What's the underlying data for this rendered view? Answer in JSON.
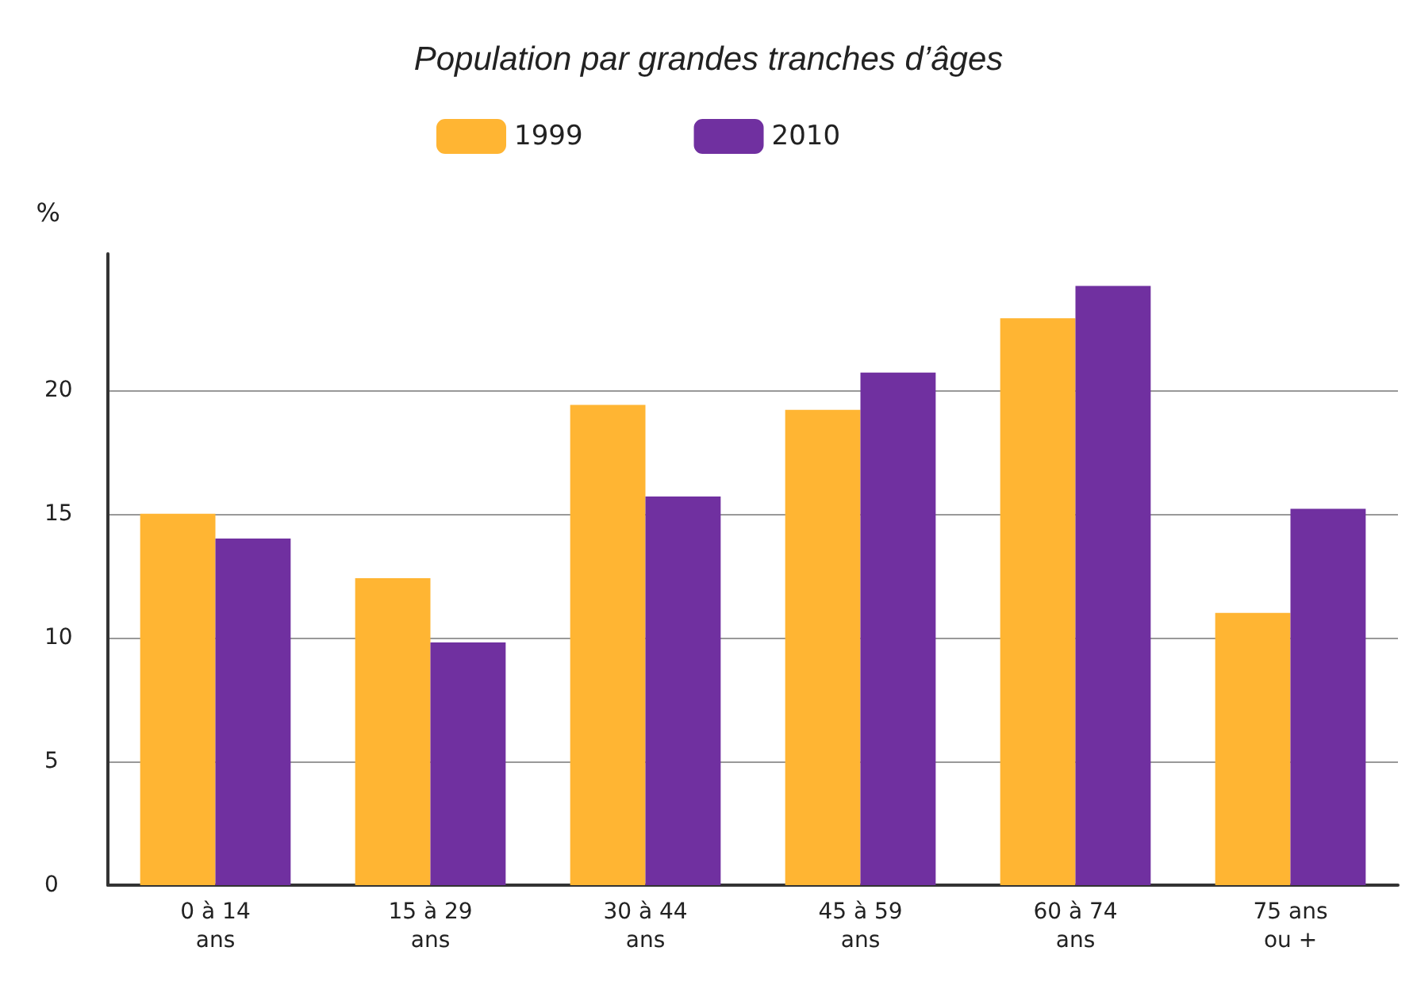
{
  "chart_data": {
    "type": "bar",
    "title": "Population par grandes tranches d’âges",
    "ylabel": "%",
    "categories": [
      "0 à 14\nans",
      "15 à 29\nans",
      "30 à 44\nans",
      "45 à 59\nans",
      "60 à 74\nans",
      "75 ans\nou +"
    ],
    "series": [
      {
        "name": "1999",
        "color": "#ffb533",
        "values": [
          15.0,
          12.4,
          19.4,
          19.2,
          22.9,
          11.0
        ]
      },
      {
        "name": "2010",
        "color": "#7030a0",
        "values": [
          14.0,
          9.8,
          15.7,
          20.7,
          24.2,
          15.2
        ]
      }
    ],
    "ylim": [
      0,
      25.5
    ],
    "yticks": [
      0,
      5,
      10,
      15,
      20
    ],
    "grid": "y",
    "legend": "top"
  }
}
